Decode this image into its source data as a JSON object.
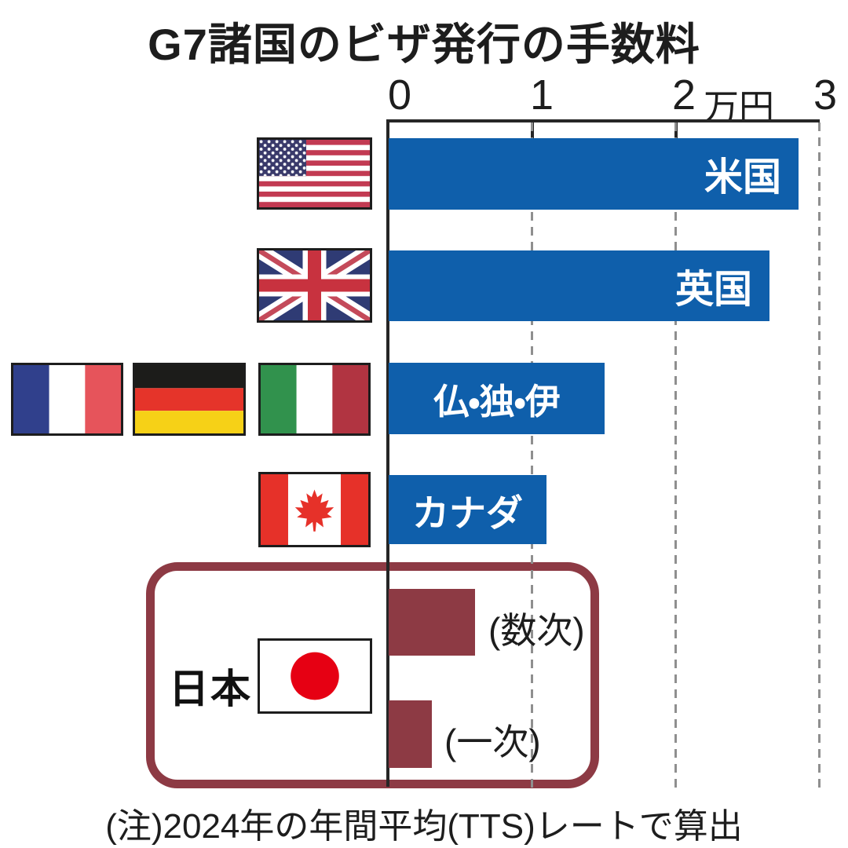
{
  "title": "G7諸国のビザ発行の手数料",
  "note": "(注)2024年の年間平均(TTS)レートで算出",
  "axis": {
    "tick_labels": [
      "0",
      "1",
      "2",
      "3"
    ],
    "unit_label": "万円"
  },
  "chart_data": {
    "type": "bar",
    "orientation": "horizontal",
    "title": "G7諸国のビザ発行の手数料",
    "unit": "万円",
    "xlabel": "万円",
    "ylabel": "",
    "xlim": [
      0,
      3
    ],
    "x_ticks": [
      0,
      1,
      2,
      3
    ],
    "gridlines": "dashed-vertical",
    "categories": [
      "米国",
      "英国",
      "仏・独・伊",
      "カナダ",
      "日本(数次)",
      "日本(一次)"
    ],
    "values": [
      2.85,
      2.65,
      1.5,
      1.1,
      0.6,
      0.3
    ],
    "bar_colors": [
      "#0f5fab",
      "#0f5fab",
      "#0f5fab",
      "#0f5fab",
      "#8d3a44",
      "#8d3a44"
    ],
    "note": "(注)2024年の年間平均(TTS)レートで算出"
  },
  "rows": [
    {
      "label": "米国",
      "flag_icon": "us-flag-icon"
    },
    {
      "label": "英国",
      "flag_icon": "uk-flag-icon"
    },
    {
      "label": "仏・独・伊",
      "flag_icon": "france-flag-icon germany-flag-icon italy-flag-icon"
    },
    {
      "label": "カナダ",
      "flag_icon": "canada-flag-icon"
    },
    {
      "label": "(数次)",
      "flag_icon": "japan-flag-icon"
    },
    {
      "label": "(一次)",
      "flag_icon": "japan-flag-icon"
    }
  ],
  "japan_box": {
    "country_label": "日本"
  },
  "colors": {
    "bar_blue": "#0f5fab",
    "japan_maroon": "#8d3a44",
    "grid_gray": "#8f8f8f",
    "axis_dark": "#262626"
  }
}
